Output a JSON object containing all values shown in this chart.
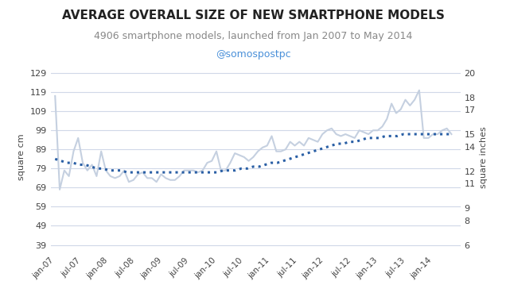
{
  "title": "AVERAGE OVERALL SIZE OF NEW SMARTPHONE MODELS",
  "subtitle": "4906 smartphone models, launched from Jan 2007 to May 2014",
  "handle": "@somospostpc",
  "ylabel_left": "square cm",
  "ylabel_right": "square inches",
  "yticks_left": [
    39,
    49,
    59,
    69,
    79,
    89,
    99,
    109,
    119,
    129
  ],
  "yticks_right": [
    6,
    8,
    9,
    11,
    12,
    14,
    15,
    17,
    18,
    20
  ],
  "ylim_left": [
    35,
    135
  ],
  "ylim_right": [
    5.4,
    20.9
  ],
  "background_color": "#ffffff",
  "grid_color": "#d0d8e8",
  "line_raw_color": "#c5d0e0",
  "line_trend_color": "#2a5fa5",
  "title_fontsize": 11,
  "subtitle_fontsize": 9,
  "handle_color": "#4a90d9",
  "x_labels": [
    "jan-07",
    "jul-07",
    "jan-08",
    "jul-08",
    "jan-09",
    "jul-09",
    "jan-10",
    "jul-10",
    "jan-11",
    "jul-11",
    "jan-12",
    "jul-12",
    "jan-13",
    "jul-13",
    "jan-14"
  ],
  "raw_data_cm": [
    117,
    68,
    78,
    75,
    88,
    95,
    82,
    78,
    81,
    75,
    88,
    78,
    75,
    74,
    75,
    78,
    72,
    73,
    76,
    77,
    74,
    74,
    72,
    76,
    74,
    73,
    73,
    75,
    78,
    78,
    78,
    77,
    78,
    82,
    83,
    88,
    78,
    78,
    82,
    87,
    86,
    85,
    83,
    85,
    88,
    90,
    91,
    96,
    88,
    88,
    89,
    93,
    91,
    93,
    91,
    95,
    94,
    93,
    97,
    99,
    100,
    97,
    96,
    97,
    96,
    95,
    99,
    98,
    97,
    99,
    99,
    101,
    105,
    113,
    108,
    110,
    115,
    112,
    115,
    120,
    95,
    95,
    97,
    97,
    99,
    100,
    97
  ],
  "trend_data_cm": [
    84,
    83,
    82,
    82,
    81,
    81,
    80,
    79,
    79,
    78,
    78,
    78,
    77,
    77,
    77,
    77,
    77,
    77,
    77,
    77,
    77,
    77,
    77,
    77,
    77,
    77,
    77,
    77,
    78,
    78,
    78,
    79,
    79,
    80,
    80,
    81,
    82,
    82,
    83,
    84,
    85,
    86,
    87,
    88,
    89,
    90,
    91,
    92,
    92,
    93,
    93,
    94,
    95,
    95,
    95,
    96,
    96,
    96,
    97,
    97,
    97,
    97,
    97,
    97,
    97,
    97,
    97
  ]
}
